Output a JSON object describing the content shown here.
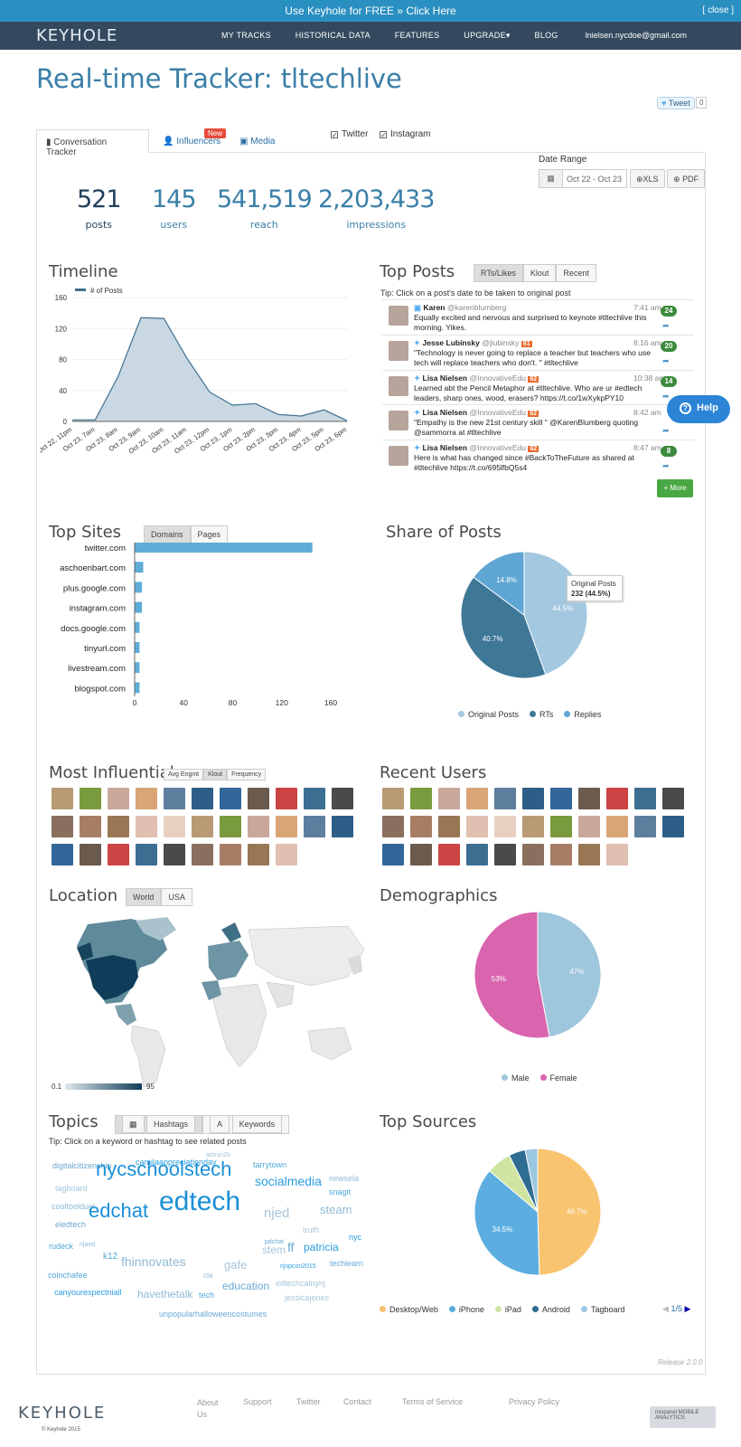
{
  "banner": {
    "text": "Use Keyhole for FREE » Click Here",
    "close": "[ close ]"
  },
  "nav": {
    "logo": "KEYHOLE",
    "items": [
      "MY TRACKS",
      "HISTORICAL DATA",
      "FEATURES",
      "UPGRADE▾",
      "BLOG"
    ],
    "user": "lnielsen.nycdoe@gmail.com"
  },
  "title": "Real-time Tracker: tltechlive",
  "tweet": {
    "label": "Tweet",
    "count": "0"
  },
  "tabs": {
    "conversation": "Conversation Tracker",
    "influencers": "Influencers",
    "new_badge": "New",
    "media": "Media"
  },
  "filters": {
    "twitter": "Twitter",
    "instagram": "Instagram"
  },
  "date_range": {
    "label": "Date Range",
    "value": "Oct 22 - Oct 23",
    "xls": "XLS",
    "pdf": "PDF"
  },
  "stats": [
    {
      "value": "521",
      "label": "posts"
    },
    {
      "value": "145",
      "label": "users"
    },
    {
      "value": "541,519",
      "label": "reach"
    },
    {
      "value": "2,203,433",
      "label": "impressions"
    }
  ],
  "sections": {
    "timeline": "Timeline",
    "top_posts": "Top Posts",
    "top_sites": "Top Sites",
    "share_of_posts": "Share of Posts",
    "most_influential": "Most Influential",
    "recent_users": "Recent Users",
    "location": "Location",
    "demographics": "Demographics",
    "topics": "Topics",
    "top_sources": "Top Sources"
  },
  "top_posts": {
    "tabs": [
      "RTs/Likes",
      "Klout",
      "Recent"
    ],
    "tip": "Tip: Click on a post's date to be taken to original post",
    "posts": [
      {
        "name": "Karen",
        "handle": "@karenblumberg",
        "time": "7:41 am",
        "text": "Equally excited and nervous and surprised to keynote #tltechlive this morning. Yikes.",
        "count": "24",
        "klout": ""
      },
      {
        "name": "Jesse Lubinsky",
        "handle": "@jlubinsky",
        "time": "8:16 am",
        "text": "\"Technology is never going to replace a teacher but teachers who use tech will replace teachers who don't. \" #tltechlive",
        "count": "20",
        "klout": "61"
      },
      {
        "name": "Lisa Nielsen",
        "handle": "@InnovativeEdu",
        "time": "10:38 am",
        "text": "Learned abt the Pencil Metaphor at #tltechlive. Who are ur #edtech leaders, sharp ones, wood, erasers? https://t.co/1wXykpPY10",
        "count": "14",
        "klout": "62"
      },
      {
        "name": "Lisa Nielsen",
        "handle": "@InnovativeEdu",
        "time": "8:42 am",
        "text": "\"Empathy is the new 21st century skill \" @KarenBlumberg quoting @sammorra at #tltechlive",
        "count": "",
        "klout": "62"
      },
      {
        "name": "Lisa Nielsen",
        "handle": "@InnovativeEdu",
        "time": "8:47 am",
        "text": "Here is what has changed since #BackToTheFuture as shared at #tltechlive https://t.co/695lfbQ5s4",
        "count": "8",
        "klout": "62"
      }
    ],
    "more": "+ More"
  },
  "help": "Help",
  "timeline_chart": {
    "legend": "# of Posts"
  },
  "sites": {
    "tabs": [
      "Domains",
      "Pages"
    ]
  },
  "share": {
    "tooltip_title": "Original Posts",
    "tooltip_value": "232 (44.5%)"
  },
  "influential": {
    "tabs": [
      "Avg Engmt",
      "Klout",
      "Frequency"
    ]
  },
  "location": {
    "tabs": [
      "World",
      "USA"
    ],
    "scale_min": "0.1",
    "scale_max": "95"
  },
  "topics": {
    "tabs": [
      "Hashtags",
      "Keywords"
    ],
    "tip": "Tip: Click on a keyword or hashtag to see related posts",
    "words": [
      "admin2b",
      "digitalcitizenship",
      "camilaappreciationday",
      "tarrytown",
      "newsela",
      "tagboard",
      "nycschoolstech",
      "socialmedia",
      "snagit",
      "cooltoolduel",
      "njed",
      "eledtech",
      "edchat",
      "edtech",
      "steam",
      "truth",
      "pdchat",
      "nyc",
      "rudeck",
      "njaed",
      "stem",
      "ff",
      "patricia",
      "k12",
      "fhinnovates",
      "gafe",
      "techlearn",
      "njspcon2015",
      "colnchafee",
      "cte",
      "edtechcalnynj",
      "education",
      "canyourespectniall",
      "tech",
      "havethetalk",
      "jessicajones",
      "unpopularhalloweencostumes"
    ]
  },
  "sources": {
    "page": "1/5"
  },
  "chart_data": [
    {
      "type": "line",
      "title": "Timeline",
      "series": [
        {
          "name": "# of Posts",
          "values": [
            2,
            2,
            58,
            134,
            133,
            82,
            38,
            21,
            23,
            9,
            7,
            15,
            1
          ]
        }
      ],
      "categories": [
        "Oct 22, 11pm",
        "Oct 23, 7am",
        "Oct 23, 8am",
        "Oct 23, 9am",
        "Oct 23, 10am",
        "Oct 23, 11am",
        "Oct 23, 12pm",
        "Oct 23, 1pm",
        "Oct 23, 2pm",
        "Oct 23, 3pm",
        "Oct 23, 4pm",
        "Oct 23, 5pm",
        "Oct 23, 6pm"
      ],
      "yticks": [
        0,
        40,
        80,
        120,
        160
      ],
      "ylim": [
        0,
        160
      ]
    },
    {
      "type": "bar",
      "title": "Top Sites",
      "categories": [
        "twitter.com",
        "aschoenbart.com",
        "plus.google.com",
        "instagram.com",
        "docs.google.com",
        "tinyurl.com",
        "livestream.com",
        "blogspot.com"
      ],
      "values": [
        145,
        7,
        6,
        6,
        4,
        4,
        4,
        4
      ],
      "xticks": [
        0,
        40,
        80,
        120,
        160
      ],
      "xlim": [
        0,
        160
      ]
    },
    {
      "type": "pie",
      "title": "Share of Posts",
      "labels": [
        "Original Posts",
        "RTs",
        "Replies"
      ],
      "values": [
        44.5,
        40.7,
        14.8
      ],
      "colors": [
        "#a3c8e0",
        "#3f7797",
        "#5fa6d4"
      ]
    },
    {
      "type": "pie",
      "title": "Demographics",
      "labels": [
        "Male",
        "Female"
      ],
      "values": [
        47,
        53
      ],
      "colors": [
        "#9ec6dd",
        "#d965ae"
      ]
    },
    {
      "type": "pie",
      "title": "Top Sources",
      "labels": [
        "Desktop/Web",
        "iPhone",
        "iPad",
        "Android",
        "Tagboard"
      ],
      "values": [
        46.7,
        34.5,
        6,
        4,
        3
      ],
      "colors": [
        "#f8c470",
        "#5caee0",
        "#cfe4a0",
        "#2f6c92",
        "#9cc7e0"
      ]
    }
  ],
  "footer": {
    "logo": "KEYHOLE",
    "copyright": "© Keyhole 2015",
    "links": [
      "About Us",
      "Support",
      "Twitter",
      "Contact",
      "Terms of Service",
      "Privacy Policy"
    ],
    "release": "Release 2.0.0",
    "mixpanel": "mixpanel MOBILE ANALYTICS"
  }
}
